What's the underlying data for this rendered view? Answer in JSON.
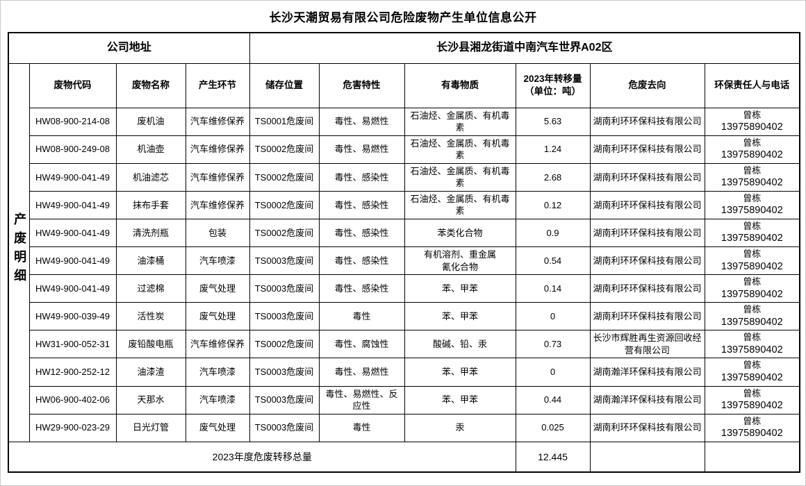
{
  "page": {
    "title": "长沙天潮贸易有限公司危险废物产生单位信息公开"
  },
  "address": {
    "label": "公司地址",
    "value": "长沙县湘龙街道中南汽车世界A02区"
  },
  "table": {
    "side_label": "产废明细",
    "columns": {
      "code": "废物代码",
      "name": "废物名称",
      "stage": "产生环节",
      "storage": "储存位置",
      "hazard": "危害特性",
      "toxins": "有毒物质",
      "transfer_l1": "2023年转移量",
      "transfer_l2": "（单位：吨）",
      "destination": "危废去向",
      "contact": "环保责任人与电话"
    },
    "rows": [
      {
        "code": "HW08-900-214-08",
        "name": "废机油",
        "stage": "汽车维修保养",
        "storage": "TS0001危废间",
        "hazard": "毒性、易燃性",
        "toxins": "石油烃、金属质、有机毒素",
        "amount": "5.63",
        "destination": "湖南利环环保科技有限公司",
        "contact_name": "曾栋",
        "contact_phone": "13975890402"
      },
      {
        "code": "HW08-900-249-08",
        "name": "机油壶",
        "stage": "汽车维修保养",
        "storage": "TS0002危废间",
        "hazard": "毒性、易燃性",
        "toxins": "石油烃、金属质、有机毒素",
        "amount": "1.24",
        "destination": "湖南利环环保科技有限公司",
        "contact_name": "曾栋",
        "contact_phone": "13975890402"
      },
      {
        "code": "HW49-900-041-49",
        "name": "机油滤芯",
        "stage": "汽车维修保养",
        "storage": "TS0002危废间",
        "hazard": "毒性、感染性",
        "toxins": "石油烃、金属质、有机毒素",
        "amount": "2.68",
        "destination": "湖南利环环保科技有限公司",
        "contact_name": "曾栋",
        "contact_phone": "13975890402"
      },
      {
        "code": "HW49-900-041-49",
        "name": "抹布手套",
        "stage": "汽车维修保养",
        "storage": "TS0002危废间",
        "hazard": "毒性、感染性",
        "toxins": "石油烃、金属质、有机毒素",
        "amount": "0.12",
        "destination": "湖南利环环保科技有限公司",
        "contact_name": "曾栋",
        "contact_phone": "13975890402"
      },
      {
        "code": "HW49-900-041-49",
        "name": "清洗剂瓶",
        "stage": "包装",
        "storage": "TS0002危废间",
        "hazard": "毒性、感染性",
        "toxins": "苯类化合物",
        "amount": "0.9",
        "destination": "湖南利环环保科技有限公司",
        "contact_name": "曾栋",
        "contact_phone": "13975890402"
      },
      {
        "code": "HW49-900-041-49",
        "name": "油漆桶",
        "stage": "汽车喷漆",
        "storage": "TS0003危废间",
        "hazard": "毒性、感染性",
        "toxins": "有机溶剂、重金属\n氰化合物",
        "amount": "0.54",
        "destination": "湖南利环环保科技有限公司",
        "contact_name": "曾栋",
        "contact_phone": "13975890402"
      },
      {
        "code": "HW49-900-041-49",
        "name": "过滤棉",
        "stage": "废气处理",
        "storage": "TS0003危废间",
        "hazard": "毒性、感染性",
        "toxins": "苯、甲苯",
        "amount": "0.14",
        "destination": "湖南利环环保科技有限公司",
        "contact_name": "曾栋",
        "contact_phone": "13975890402"
      },
      {
        "code": "HW49-900-039-49",
        "name": "活性炭",
        "stage": "废气处理",
        "storage": "TS0003危废间",
        "hazard": "毒性",
        "toxins": "苯、甲苯",
        "amount": "0",
        "destination": "湖南利环环保科技有限公司",
        "contact_name": "曾栋",
        "contact_phone": "13975890402"
      },
      {
        "code": "HW31-900-052-31",
        "name": "废铅酸电瓶",
        "stage": "汽车维修保养",
        "storage": "TS0002危废间",
        "hazard": "毒性、腐蚀性",
        "toxins": "酸碱、铅、汞",
        "amount": "0.73",
        "destination": "长沙市辉胜再生资源回收经营有限公司",
        "contact_name": "曾栋",
        "contact_phone": "13975890402"
      },
      {
        "code": "HW12-900-252-12",
        "name": "油漆渣",
        "stage": "汽车喷漆",
        "storage": "TS0003危废间",
        "hazard": "毒性、易燃性",
        "toxins": "苯、甲苯",
        "amount": "0",
        "destination": "湖南瀚洋环保科技有限公司",
        "contact_name": "曾栋",
        "contact_phone": "13975890402"
      },
      {
        "code": "HW06-900-402-06",
        "name": "天那水",
        "stage": "汽车喷漆",
        "storage": "TS0003危废间",
        "hazard": "毒性、易燃性、反应性",
        "toxins": "苯、甲苯",
        "amount": "0.44",
        "destination": "湖南瀚洋环保科技有限公司",
        "contact_name": "曾栋",
        "contact_phone": "13975890402"
      },
      {
        "code": "HW29-900-023-29",
        "name": "日光灯管",
        "stage": "废气处理",
        "storage": "TS0003危废间",
        "hazard": "毒性",
        "toxins": "汞",
        "amount": "0.025",
        "destination": "湖南利环环保科技有限公司",
        "contact_name": "曾栋",
        "contact_phone": "13975890402"
      }
    ],
    "footer": {
      "label": "2023年度危废转移总量",
      "total": "12.445"
    }
  }
}
